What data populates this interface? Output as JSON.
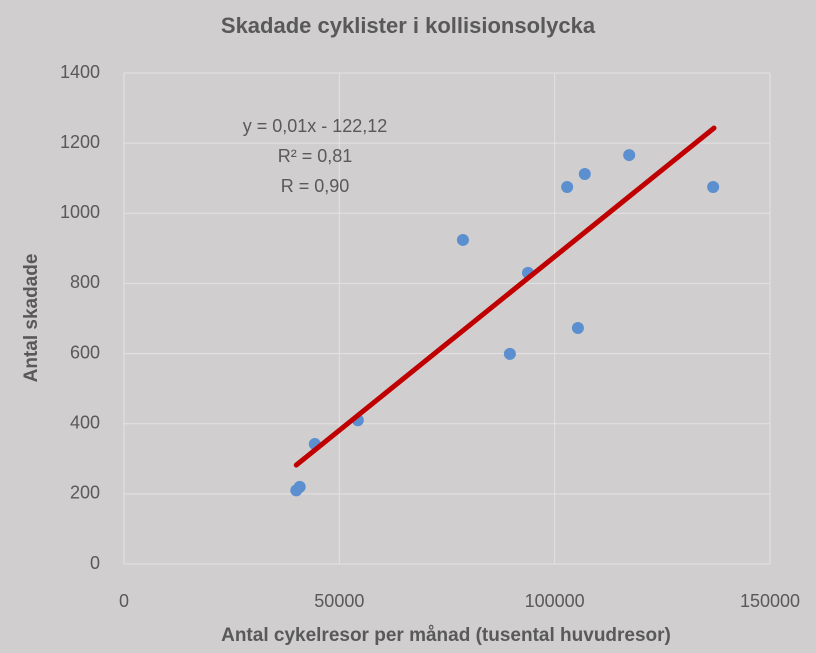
{
  "chart_data": {
    "type": "scatter",
    "title": "Skadade cyklister i kollisionsolycka",
    "x_label": "Antal cykelresor per månad (tusental huvudresor)",
    "y_label": "Antal skadade",
    "annotations": [
      "y = 0,01x - 122,12",
      "R² = 0,81",
      "R = 0,90"
    ],
    "series": [
      {
        "name": "Skadade",
        "color": "#5b8fd0",
        "x": [
          40000,
          40800,
          44300,
          54300,
          78700,
          89600,
          93800,
          102900,
          105400,
          107000,
          117300,
          136800
        ],
        "values": [
          210,
          220,
          342,
          410,
          924,
          599,
          830,
          1075,
          673,
          1112,
          1166,
          1075
        ]
      }
    ],
    "trendline": {
      "color": "#c00000",
      "x": [
        40000,
        137000
      ],
      "values": [
        282,
        1243
      ]
    },
    "xlim": [
      0,
      150000
    ],
    "xticks": [
      0,
      50000,
      100000,
      150000
    ],
    "ylim": [
      0,
      1400
    ],
    "yticks": [
      0,
      200,
      400,
      600,
      800,
      1000,
      1200,
      1400
    ],
    "grid": true
  }
}
